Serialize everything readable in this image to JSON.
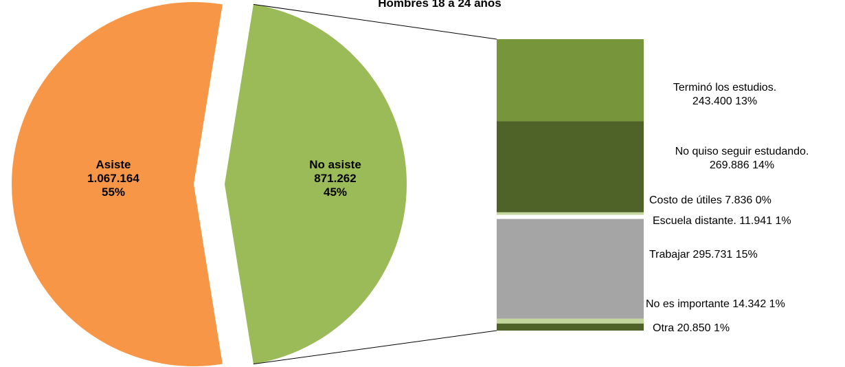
{
  "chart_data": {
    "type": "bar-of-pie",
    "title": "Hombres 18 a 24 años",
    "pie": [
      {
        "name": "Asiste",
        "value_text": "1.067.164",
        "value": 1067164,
        "percent": "55%",
        "color": "#F79646"
      },
      {
        "name": "No asiste",
        "value_text": "871.262",
        "value": 871262,
        "percent": "45%",
        "color": "#9BBB59"
      }
    ],
    "breakdown": [
      {
        "label": "Terminó los estudios.",
        "value_text": "243.400",
        "value": 243400,
        "percent": "13%",
        "color": "#77963C"
      },
      {
        "label": "No quiso seguir estudando.",
        "value_text": "269.886",
        "value": 269886,
        "percent": "14%",
        "color": "#4F6228"
      },
      {
        "label": "Costo de útiles",
        "value_text": "7.836",
        "value": 7836,
        "percent": "0%",
        "color": "#C3D69B"
      },
      {
        "label": "Escuela distante.",
        "value_text": "11.941",
        "value": 11941,
        "percent": "1%",
        "color": "#FFFFFF"
      },
      {
        "label": "Trabajar",
        "value_text": "295.731",
        "value": 295731,
        "percent": "15%",
        "color": "#A5A5A5"
      },
      {
        "label": "No es importante",
        "value_text": "14.342",
        "value": 14342,
        "percent": "1%",
        "color": "#C3D69B"
      },
      {
        "label": "Otra",
        "value_text": "20.850",
        "value": 20850,
        "percent": "1%",
        "color": "#4F6228"
      }
    ]
  }
}
